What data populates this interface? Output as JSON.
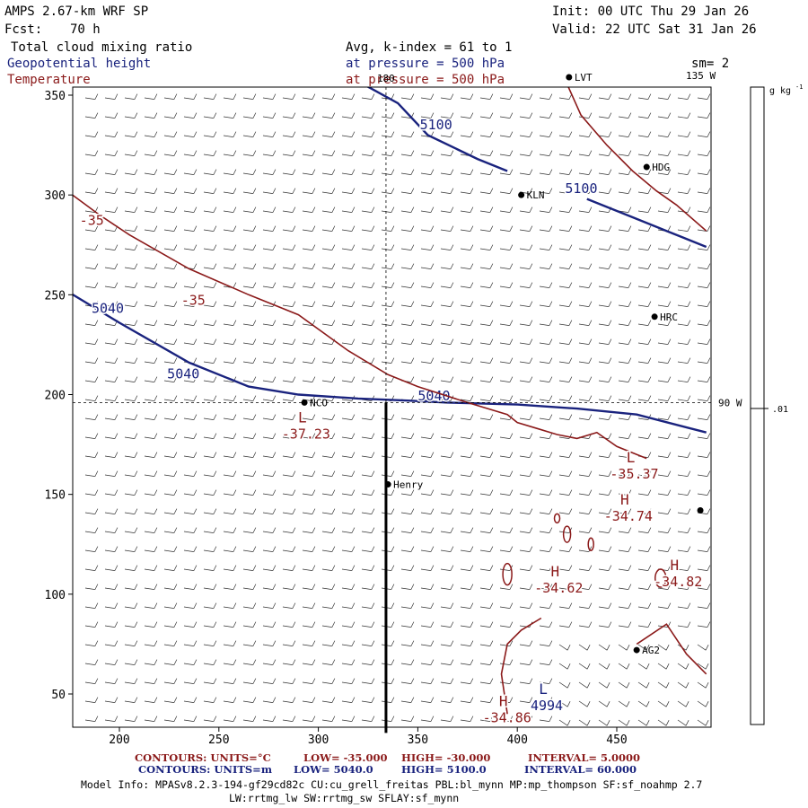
{
  "header": {
    "title": "AMPS 2.67-km WRF SP",
    "init": "Init: 00 UTC Thu 29 Jan 26",
    "fcst_label": "Fcst:",
    "fcst_value": "70 h",
    "valid": "Valid: 22 UTC Sat 31 Jan 26",
    "field1": "Total cloud mixing ratio",
    "field2": "Geopotential height",
    "field3": "Temperature",
    "avg": "Avg, k-index =  61 to   1",
    "pressure1": "at pressure =  500 hPa",
    "pressure2": "at pressure =  500 hPa",
    "smoothing": "sm= 2"
  },
  "colors": {
    "height": "#1a237e",
    "temperature": "#8b1a1a",
    "axis": "#000000"
  },
  "chart_data": {
    "type": "contour-map",
    "x_ticks": [
      200,
      250,
      300,
      350,
      400,
      450
    ],
    "y_ticks": [
      50,
      100,
      150,
      200,
      250,
      300,
      350
    ],
    "xlim": [
      175,
      495
    ],
    "ylim": [
      35,
      360
    ],
    "meridians": [
      {
        "label": "180",
        "x": 334
      },
      {
        "label": "135 W",
        "x": 495
      },
      {
        "label": "90 W",
        "y": 196
      }
    ],
    "colorbar": {
      "unit": "g kg",
      "unit_exp": "-1",
      "tick_label": ".01",
      "tick_value": 0.01
    },
    "height_contours": [
      {
        "value": 5040,
        "label": "5040",
        "points": [
          [
            175,
            251
          ],
          [
            200,
            236
          ],
          [
            235,
            216
          ],
          [
            265,
            204
          ],
          [
            290,
            200
          ],
          [
            320,
            198
          ],
          [
            345,
            197
          ],
          [
            365,
            196
          ],
          [
            400,
            195
          ],
          [
            430,
            193
          ],
          [
            460,
            190
          ],
          [
            495,
            181
          ]
        ],
        "labels": [
          [
            186,
            241,
            "5040"
          ],
          [
            224,
            208,
            "5040"
          ],
          [
            350,
            197,
            "5040"
          ]
        ]
      },
      {
        "value": 5100,
        "label": "5100",
        "points": [
          [
            318,
            358
          ],
          [
            340,
            346
          ],
          [
            355,
            330
          ],
          [
            380,
            318
          ],
          [
            395,
            312
          ]
        ],
        "labels": [
          [
            351,
            333,
            "5100"
          ]
        ]
      },
      {
        "value": 5100,
        "label": "5100",
        "points": [
          [
            435,
            298
          ],
          [
            455,
            290
          ],
          [
            475,
            282
          ],
          [
            495,
            274
          ]
        ],
        "labels": [
          [
            424,
            301,
            "5100"
          ]
        ]
      }
    ],
    "temperature_contours": [
      {
        "value": -35,
        "points": [
          [
            175,
            301
          ],
          [
            190,
            290
          ],
          [
            205,
            280
          ],
          [
            235,
            263
          ],
          [
            265,
            250
          ],
          [
            290,
            240
          ],
          [
            315,
            222
          ],
          [
            335,
            210
          ],
          [
            350,
            204
          ],
          [
            375,
            196
          ],
          [
            395,
            190
          ],
          [
            400,
            186
          ],
          [
            410,
            183
          ],
          [
            420,
            180
          ],
          [
            430,
            178
          ],
          [
            440,
            181
          ],
          [
            450,
            174
          ],
          [
            460,
            170
          ],
          [
            465,
            168
          ]
        ],
        "labels": [
          [
            180,
            285,
            "-35"
          ],
          [
            231,
            245,
            "-35"
          ]
        ]
      },
      {
        "value": -35,
        "points": [
          [
            423,
            360
          ],
          [
            432,
            340
          ],
          [
            445,
            325
          ],
          [
            458,
            312
          ],
          [
            470,
            302
          ],
          [
            480,
            295
          ],
          [
            495,
            282
          ]
        ],
        "labels": []
      },
      {
        "value": -30,
        "points": [
          [
            460,
            75
          ],
          [
            475,
            85
          ],
          [
            485,
            70
          ],
          [
            495,
            60
          ]
        ],
        "labels": []
      },
      {
        "value": -35,
        "points": [
          [
            395,
            40
          ],
          [
            392,
            60
          ],
          [
            395,
            75
          ],
          [
            402,
            82
          ],
          [
            412,
            88
          ]
        ],
        "labels": []
      }
    ],
    "extrema": [
      {
        "kind": "L",
        "value": "-37.23",
        "x": 292,
        "y": 186,
        "color": "temperature"
      },
      {
        "kind": "L",
        "value": "-35.37",
        "x": 457,
        "y": 166,
        "color": "temperature"
      },
      {
        "kind": "H",
        "value": "-34.74",
        "x": 454,
        "y": 145,
        "color": "temperature"
      },
      {
        "kind": "H",
        "value": "-34.62",
        "x": 419,
        "y": 109,
        "color": "temperature"
      },
      {
        "kind": "H",
        "value": "-34.82",
        "x": 479,
        "y": 112,
        "color": "temperature"
      },
      {
        "kind": "H",
        "value": "-34.86",
        "x": 393,
        "y": 44,
        "color": "temperature"
      },
      {
        "kind": "L",
        "value": "4994",
        "x": 413,
        "y": 50,
        "color": "height"
      }
    ],
    "stations": [
      {
        "name": "LVT",
        "x": 426,
        "y": 359
      },
      {
        "name": "HDG",
        "x": 465,
        "y": 314
      },
      {
        "name": "KLN",
        "x": 402,
        "y": 300
      },
      {
        "name": "HRC",
        "x": 469,
        "y": 239
      },
      {
        "name": "NCO",
        "x": 293,
        "y": 196
      },
      {
        "name": "Henry",
        "x": 335,
        "y": 155
      },
      {
        "name": "AG2",
        "x": 460,
        "y": 72
      },
      {
        "name": "",
        "x": 492,
        "y": 142
      }
    ],
    "cross_section": {
      "x": 334,
      "y_start": 196,
      "y_end": 35
    }
  },
  "footer": {
    "row1": {
      "label": "CONTOURS:  UNITS=°C",
      "low": "LOW=  -35.000",
      "high": "HIGH=  -30.000",
      "interval": "INTERVAL=   5.0000"
    },
    "row2": {
      "label": "CONTOURS:  UNITS=m",
      "low": "LOW=  5040.0",
      "high": "HIGH=  5100.0",
      "interval": "INTERVAL=  60.000"
    },
    "model_info": "Model Info: MPASv8.2.3-194-gf29cd82c CU:cu_grell_freitas PBL:bl_mynn MP:mp_thompson SF:sf_noahmp 2.7",
    "model_info2": "LW:rrtmg_lw SW:rrtmg_sw SFLAY:sf_mynn"
  }
}
